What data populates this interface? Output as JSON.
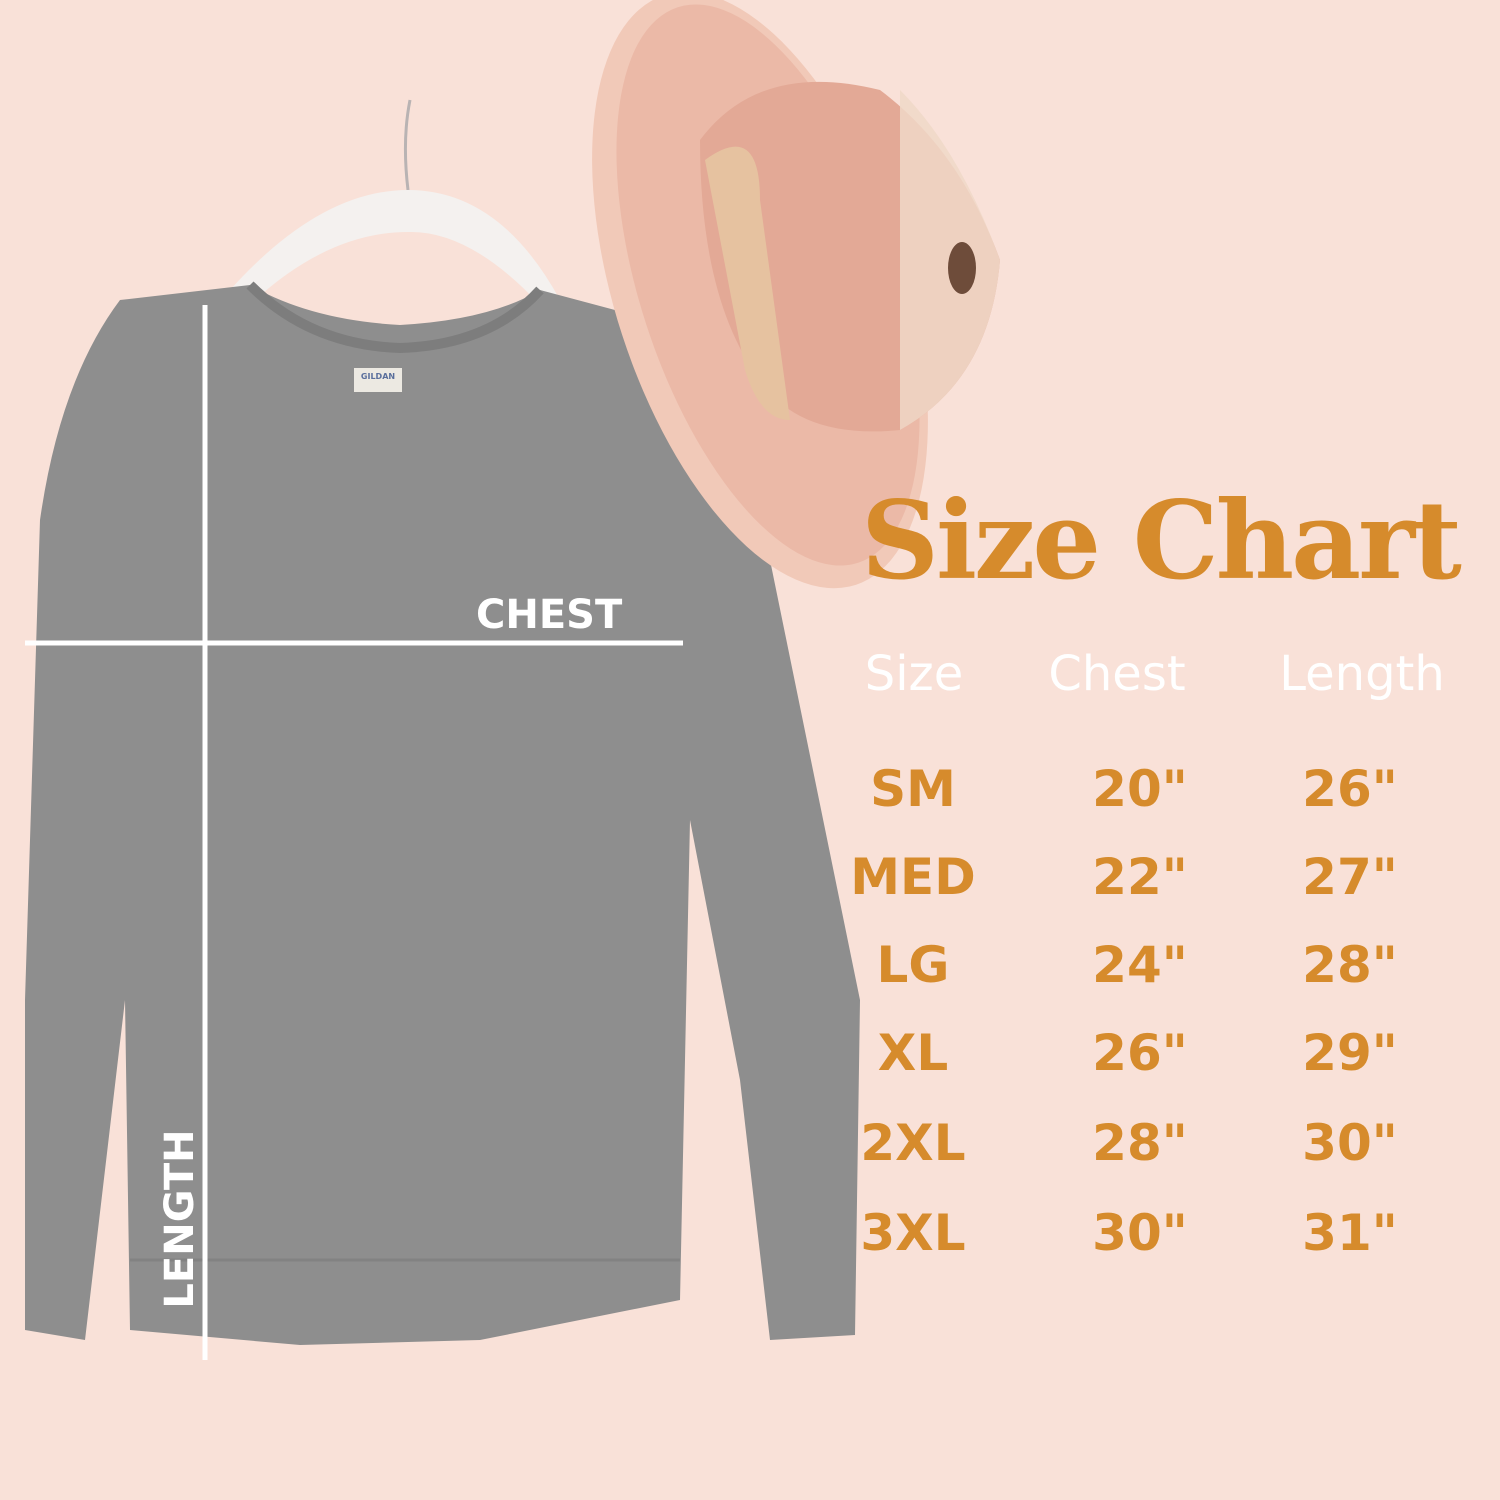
{
  "title": "Size Chart",
  "colors": {
    "background": "#f9e1d8",
    "accent": "#d68b2c",
    "header_text": "#ffffff",
    "sweatshirt": "#8e8e8e"
  },
  "garment_labels": {
    "chest": "CHEST",
    "length": "LENGTH",
    "tag_brand": "GILDAN"
  },
  "table": {
    "headers": [
      "Size",
      "Chest",
      "Length"
    ],
    "rows": [
      {
        "size": "SM",
        "chest": "20\"",
        "length": "26\""
      },
      {
        "size": "MED",
        "chest": "22\"",
        "length": "27\""
      },
      {
        "size": "LG",
        "chest": "24\"",
        "length": "28\""
      },
      {
        "size": "XL",
        "chest": "26\"",
        "length": "29\""
      },
      {
        "size": "2XL",
        "chest": "28\"",
        "length": "30\""
      },
      {
        "size": "3XL",
        "chest": "30\"",
        "length": "31\""
      }
    ]
  }
}
